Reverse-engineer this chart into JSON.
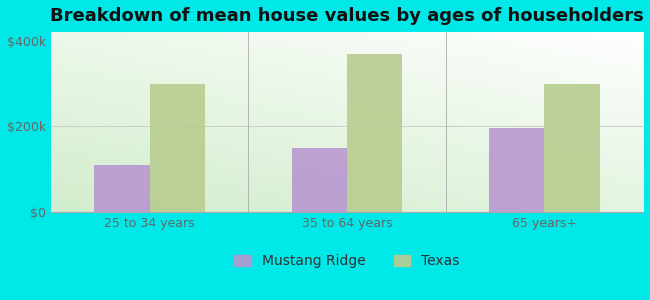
{
  "title": "Breakdown of mean house values by ages of householders",
  "categories": [
    "25 to 34 years",
    "35 to 64 years",
    "65 years+"
  ],
  "mustang_ridge": [
    110000,
    150000,
    197000
  ],
  "texas": [
    300000,
    370000,
    300000
  ],
  "mustang_color": "#b898d0",
  "texas_color": "#b8cc90",
  "background_color": "#00e8e8",
  "ylim": [
    0,
    420000
  ],
  "yticks": [
    0,
    200000,
    400000
  ],
  "ytick_labels": [
    "$0",
    "$200k",
    "$400k"
  ],
  "legend_labels": [
    "Mustang Ridge",
    "Texas"
  ],
  "bar_width": 0.28,
  "title_fontsize": 13,
  "tick_fontsize": 9,
  "legend_fontsize": 10
}
